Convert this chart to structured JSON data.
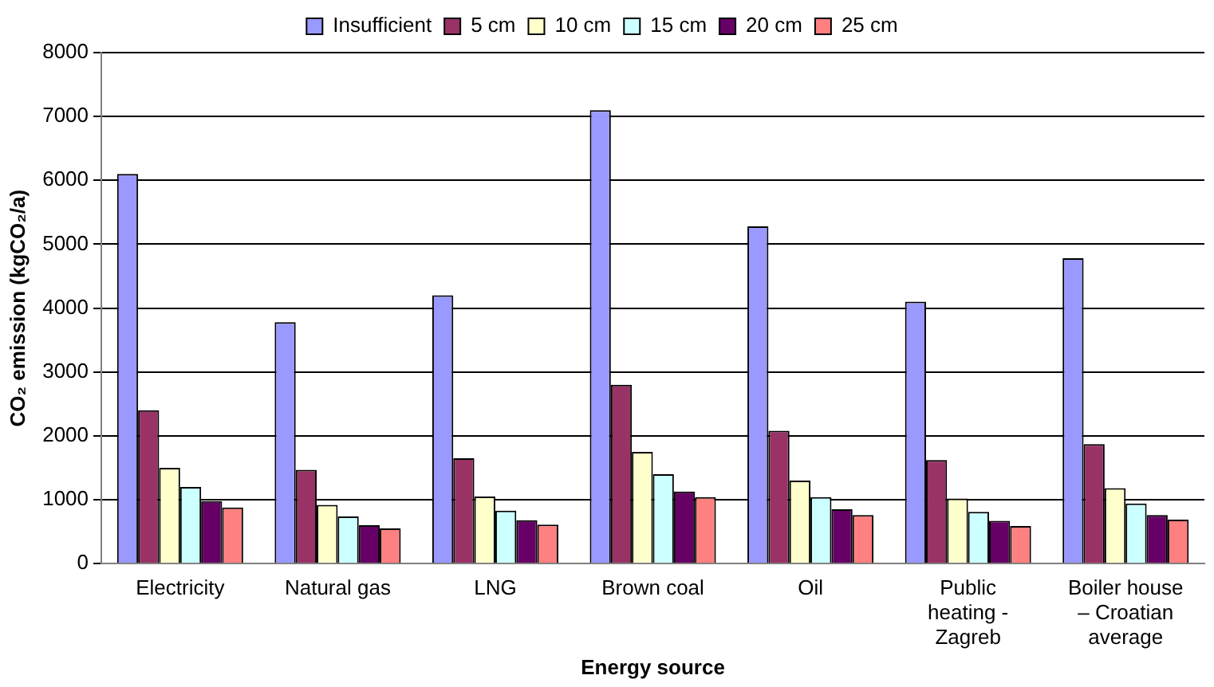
{
  "chart_data": {
    "type": "bar",
    "xlabel": "Energy source",
    "ylabel": "CO₂ emission (kgCO₂/a)",
    "categories": [
      "Electricity",
      "Natural gas",
      "LNG",
      "Brown coal",
      "Oil",
      "Public heating - Zagreb",
      "Boiler house – Croatian average"
    ],
    "series": [
      {
        "name": "Insufficient",
        "color": "#9999ff",
        "values": [
          6100,
          3780,
          4200,
          7100,
          5280,
          4100,
          4780
        ]
      },
      {
        "name": "5 cm",
        "color": "#993366",
        "values": [
          2400,
          1470,
          1650,
          2800,
          2080,
          1620,
          1870
        ]
      },
      {
        "name": "10 cm",
        "color": "#ffffcc",
        "values": [
          1500,
          920,
          1050,
          1750,
          1300,
          1020,
          1180
        ]
      },
      {
        "name": "15 cm",
        "color": "#ccffff",
        "values": [
          1200,
          740,
          830,
          1400,
          1040,
          810,
          940
        ]
      },
      {
        "name": "20 cm",
        "color": "#660066",
        "values": [
          980,
          600,
          680,
          1130,
          850,
          670,
          760
        ]
      },
      {
        "name": "25 cm",
        "color": "#ff8080",
        "values": [
          880,
          550,
          610,
          1040,
          760,
          590,
          690
        ]
      }
    ],
    "ylim": [
      0,
      8000
    ],
    "yticks": [
      0,
      1000,
      2000,
      3000,
      4000,
      5000,
      6000,
      7000,
      8000
    ],
    "grid": "y",
    "legend": "top"
  }
}
